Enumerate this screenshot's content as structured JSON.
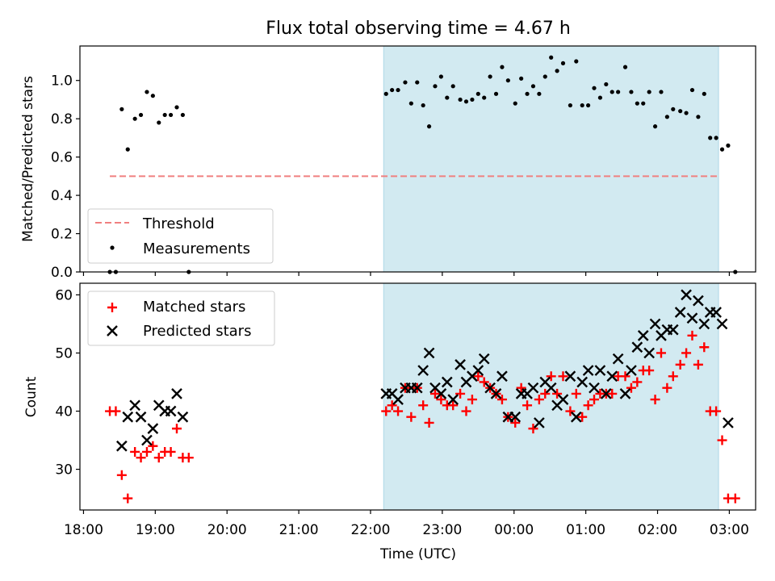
{
  "colors": {
    "shade": "#add8e6",
    "threshold": "#f08080",
    "measurement": "#000000",
    "matched": "#ff0000",
    "predicted": "#000000"
  },
  "chart_data": [
    {
      "type": "scatter",
      "title": "Flux total observing time = 4.67 h",
      "xlabel": "",
      "ylabel": "Matched/Predicted stars",
      "ylim": [
        0,
        1.18
      ],
      "yticks": [
        "0.0",
        "0.2",
        "0.4",
        "0.6",
        "0.8",
        "1.0"
      ],
      "xlim": [
        "17:57",
        "03:22"
      ],
      "shaded_span": [
        "22:11",
        "02:51"
      ],
      "legend": {
        "placement": "lower-left",
        "entries": [
          "Threshold",
          "Measurements"
        ]
      },
      "series": [
        {
          "name": "Threshold",
          "kind": "dashed-line",
          "points": [
            [
              "18:22",
              0.5
            ],
            [
              "02:52",
              0.5
            ]
          ]
        },
        {
          "name": "Measurements",
          "kind": "dot",
          "points": [
            [
              "18:22",
              0.0
            ],
            [
              "18:27",
              0.0
            ],
            [
              "18:32",
              0.85
            ],
            [
              "18:37",
              0.64
            ],
            [
              "18:43",
              0.8
            ],
            [
              "18:48",
              0.82
            ],
            [
              "18:53",
              0.94
            ],
            [
              "18:58",
              0.92
            ],
            [
              "19:03",
              0.78
            ],
            [
              "19:08",
              0.82
            ],
            [
              "19:13",
              0.82
            ],
            [
              "19:18",
              0.86
            ],
            [
              "19:23",
              0.82
            ],
            [
              "19:28",
              0.0
            ],
            [
              "22:13",
              0.93
            ],
            [
              "22:18",
              0.95
            ],
            [
              "22:23",
              0.95
            ],
            [
              "22:29",
              0.99
            ],
            [
              "22:34",
              0.88
            ],
            [
              "22:39",
              0.99
            ],
            [
              "22:44",
              0.87
            ],
            [
              "22:49",
              0.76
            ],
            [
              "22:54",
              0.97
            ],
            [
              "22:59",
              1.02
            ],
            [
              "23:04",
              0.91
            ],
            [
              "23:09",
              0.97
            ],
            [
              "23:15",
              0.9
            ],
            [
              "23:20",
              0.89
            ],
            [
              "23:25",
              0.9
            ],
            [
              "23:30",
              0.93
            ],
            [
              "23:35",
              0.91
            ],
            [
              "23:40",
              1.02
            ],
            [
              "23:45",
              0.93
            ],
            [
              "23:50",
              1.07
            ],
            [
              "23:55",
              1.0
            ],
            [
              "00:01",
              0.88
            ],
            [
              "00:06",
              1.01
            ],
            [
              "00:11",
              0.93
            ],
            [
              "00:16",
              0.97
            ],
            [
              "00:21",
              0.93
            ],
            [
              "00:26",
              1.02
            ],
            [
              "00:31",
              1.12
            ],
            [
              "00:36",
              1.05
            ],
            [
              "00:41",
              1.09
            ],
            [
              "00:47",
              0.87
            ],
            [
              "00:52",
              1.1
            ],
            [
              "00:57",
              0.87
            ],
            [
              "01:02",
              0.87
            ],
            [
              "01:07",
              0.96
            ],
            [
              "01:12",
              0.91
            ],
            [
              "01:17",
              0.98
            ],
            [
              "01:22",
              0.94
            ],
            [
              "01:27",
              0.94
            ],
            [
              "01:33",
              1.07
            ],
            [
              "01:38",
              0.94
            ],
            [
              "01:43",
              0.88
            ],
            [
              "01:48",
              0.88
            ],
            [
              "01:53",
              0.94
            ],
            [
              "01:58",
              0.76
            ],
            [
              "02:03",
              0.94
            ],
            [
              "02:08",
              0.81
            ],
            [
              "02:13",
              0.85
            ],
            [
              "02:19",
              0.84
            ],
            [
              "02:24",
              0.83
            ],
            [
              "02:29",
              0.95
            ],
            [
              "02:34",
              0.81
            ],
            [
              "02:39",
              0.93
            ],
            [
              "02:44",
              0.7
            ],
            [
              "02:49",
              0.7
            ],
            [
              "02:54",
              0.64
            ],
            [
              "02:59",
              0.66
            ],
            [
              "03:05",
              0.0
            ]
          ]
        }
      ]
    },
    {
      "type": "scatter",
      "title": "",
      "xlabel": "Time (UTC)",
      "ylabel": "Count",
      "ylim": [
        23,
        62
      ],
      "yticks": [
        "30",
        "40",
        "50",
        "60"
      ],
      "xlim": [
        "17:57",
        "03:22"
      ],
      "xticks": [
        "18:00",
        "19:00",
        "20:00",
        "21:00",
        "22:00",
        "23:00",
        "00:00",
        "01:00",
        "02:00",
        "03:00"
      ],
      "shaded_span": [
        "22:11",
        "02:51"
      ],
      "legend": {
        "placement": "upper-left",
        "entries": [
          "Matched stars",
          "Predicted stars"
        ]
      },
      "series": [
        {
          "name": "Matched stars",
          "kind": "plus",
          "points": [
            [
              "18:22",
              40
            ],
            [
              "18:27",
              40
            ],
            [
              "18:32",
              29
            ],
            [
              "18:37",
              25
            ],
            [
              "18:43",
              33
            ],
            [
              "18:48",
              32
            ],
            [
              "18:53",
              33
            ],
            [
              "18:58",
              34
            ],
            [
              "19:03",
              32
            ],
            [
              "19:08",
              33
            ],
            [
              "19:13",
              33
            ],
            [
              "19:18",
              37
            ],
            [
              "19:23",
              32
            ],
            [
              "19:28",
              32
            ],
            [
              "22:13",
              40
            ],
            [
              "22:18",
              41
            ],
            [
              "22:23",
              40
            ],
            [
              "22:29",
              44
            ],
            [
              "22:34",
              39
            ],
            [
              "22:39",
              44
            ],
            [
              "22:44",
              41
            ],
            [
              "22:49",
              38
            ],
            [
              "22:54",
              43
            ],
            [
              "22:59",
              42
            ],
            [
              "23:04",
              41
            ],
            [
              "23:09",
              41
            ],
            [
              "23:15",
              43
            ],
            [
              "23:20",
              40
            ],
            [
              "23:25",
              42
            ],
            [
              "23:30",
              46
            ],
            [
              "23:35",
              45
            ],
            [
              "23:40",
              44
            ],
            [
              "23:45",
              43
            ],
            [
              "23:50",
              42
            ],
            [
              "23:55",
              39
            ],
            [
              "00:01",
              38
            ],
            [
              "00:06",
              44
            ],
            [
              "00:11",
              41
            ],
            [
              "00:16",
              37
            ],
            [
              "00:21",
              42
            ],
            [
              "00:26",
              43
            ],
            [
              "00:31",
              46
            ],
            [
              "00:36",
              43
            ],
            [
              "00:41",
              46
            ],
            [
              "00:47",
              40
            ],
            [
              "00:52",
              43
            ],
            [
              "00:57",
              39
            ],
            [
              "01:02",
              41
            ],
            [
              "01:07",
              42
            ],
            [
              "01:12",
              43
            ],
            [
              "01:17",
              43
            ],
            [
              "01:22",
              43
            ],
            [
              "01:27",
              46
            ],
            [
              "01:33",
              46
            ],
            [
              "01:38",
              44
            ],
            [
              "01:43",
              45
            ],
            [
              "01:48",
              47
            ],
            [
              "01:53",
              47
            ],
            [
              "01:58",
              42
            ],
            [
              "02:03",
              50
            ],
            [
              "02:08",
              44
            ],
            [
              "02:13",
              46
            ],
            [
              "02:19",
              48
            ],
            [
              "02:24",
              50
            ],
            [
              "02:29",
              53
            ],
            [
              "02:34",
              48
            ],
            [
              "02:39",
              51
            ],
            [
              "02:44",
              40
            ],
            [
              "02:49",
              40
            ],
            [
              "02:54",
              35
            ],
            [
              "02:59",
              25
            ],
            [
              "03:05",
              25
            ]
          ]
        },
        {
          "name": "Predicted stars",
          "kind": "cross",
          "points": [
            [
              "18:32",
              34
            ],
            [
              "18:37",
              39
            ],
            [
              "18:43",
              41
            ],
            [
              "18:48",
              39
            ],
            [
              "18:53",
              35
            ],
            [
              "18:58",
              37
            ],
            [
              "19:03",
              41
            ],
            [
              "19:08",
              40
            ],
            [
              "19:13",
              40
            ],
            [
              "19:18",
              43
            ],
            [
              "19:23",
              39
            ],
            [
              "22:13",
              43
            ],
            [
              "22:18",
              43
            ],
            [
              "22:23",
              42
            ],
            [
              "22:29",
              44
            ],
            [
              "22:34",
              44
            ],
            [
              "22:39",
              44
            ],
            [
              "22:44",
              47
            ],
            [
              "22:49",
              50
            ],
            [
              "22:54",
              44
            ],
            [
              "22:59",
              43
            ],
            [
              "23:04",
              45
            ],
            [
              "23:09",
              42
            ],
            [
              "23:15",
              48
            ],
            [
              "23:20",
              45
            ],
            [
              "23:25",
              46
            ],
            [
              "23:30",
              47
            ],
            [
              "23:35",
              49
            ],
            [
              "23:40",
              44
            ],
            [
              "23:45",
              43
            ],
            [
              "23:50",
              46
            ],
            [
              "23:55",
              39
            ],
            [
              "00:01",
              39
            ],
            [
              "00:06",
              43
            ],
            [
              "00:11",
              43
            ],
            [
              "00:16",
              44
            ],
            [
              "00:21",
              38
            ],
            [
              "00:26",
              45
            ],
            [
              "00:31",
              44
            ],
            [
              "00:36",
              41
            ],
            [
              "00:41",
              42
            ],
            [
              "00:47",
              46
            ],
            [
              "00:52",
              39
            ],
            [
              "00:57",
              45
            ],
            [
              "01:02",
              47
            ],
            [
              "01:07",
              44
            ],
            [
              "01:12",
              47
            ],
            [
              "01:17",
              43
            ],
            [
              "01:22",
              46
            ],
            [
              "01:27",
              49
            ],
            [
              "01:33",
              43
            ],
            [
              "01:38",
              47
            ],
            [
              "01:43",
              51
            ],
            [
              "01:48",
              53
            ],
            [
              "01:53",
              50
            ],
            [
              "01:58",
              55
            ],
            [
              "02:03",
              53
            ],
            [
              "02:08",
              54
            ],
            [
              "02:13",
              54
            ],
            [
              "02:19",
              57
            ],
            [
              "02:24",
              60
            ],
            [
              "02:29",
              56
            ],
            [
              "02:34",
              59
            ],
            [
              "02:39",
              55
            ],
            [
              "02:44",
              57
            ],
            [
              "02:49",
              57
            ],
            [
              "02:54",
              55
            ],
            [
              "02:59",
              38
            ]
          ]
        }
      ]
    }
  ]
}
